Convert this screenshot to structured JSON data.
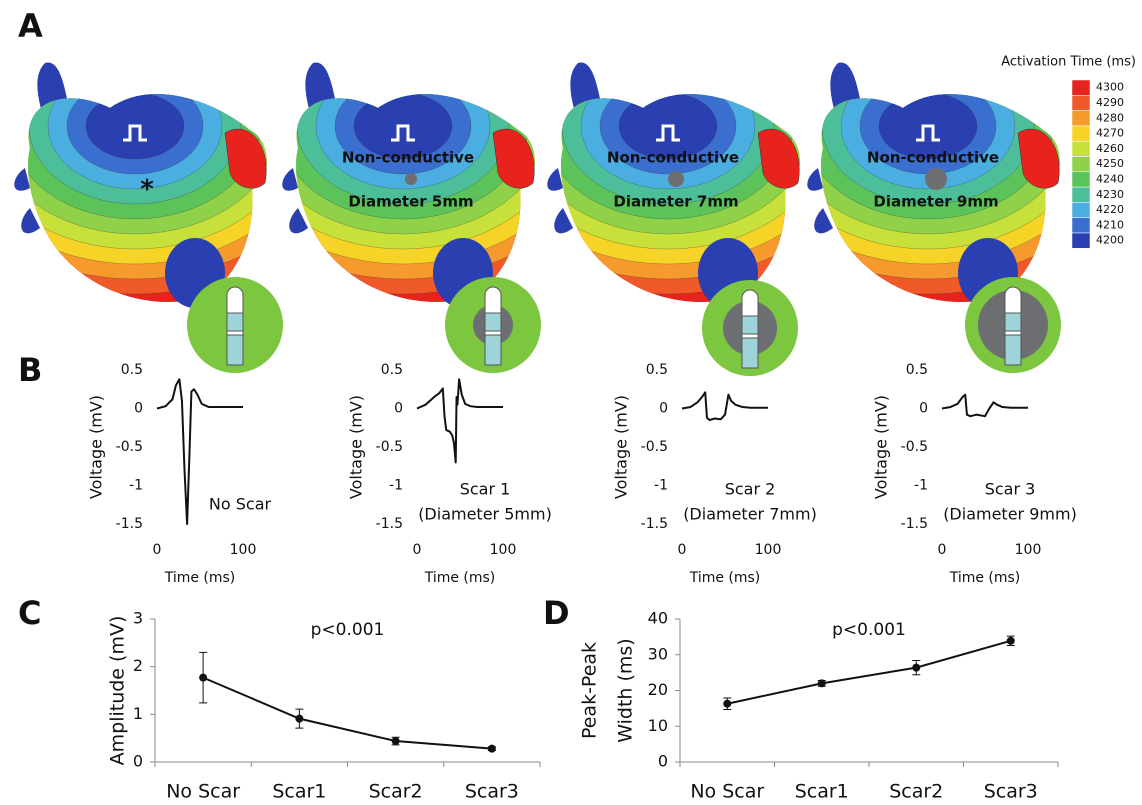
{
  "panel_labels": [
    "A",
    "B",
    "C",
    "D"
  ],
  "activation_map": {
    "colorbar_title": "Activation Time (ms)",
    "colorbar_ticks": [
      4300,
      4290,
      4280,
      4270,
      4260,
      4250,
      4240,
      4230,
      4220,
      4210,
      4200
    ],
    "colors": [
      "#e8231e",
      "#f05a28",
      "#f79a2e",
      "#f5d327",
      "#c8e03a",
      "#8fd24a",
      "#5cc35a",
      "#4cbf9a",
      "#4aaee0",
      "#3a6fd0",
      "#2a3fb0"
    ],
    "maps": [
      {
        "labels": [
          "*"
        ]
      },
      {
        "labels": [
          "Non-conductive",
          "Diameter 5mm"
        ]
      },
      {
        "labels": [
          "Non-conductive",
          "Diameter 7mm"
        ]
      },
      {
        "labels": [
          "Non-conductive",
          "Diameter 9mm"
        ]
      }
    ]
  },
  "chart_data": [
    {
      "type": "line",
      "xlabel": "Time (ms)",
      "ylabel": "Voltage (mV)",
      "annotation": [
        "No Scar"
      ],
      "xlim": [
        0,
        100
      ],
      "xticks": [
        0,
        100
      ],
      "ylim": [
        -1.5,
        0.5
      ],
      "yticks": [
        0.5,
        0,
        -0.5,
        -1,
        -1.5
      ],
      "color": "#111111",
      "x": [
        0,
        10,
        18,
        22,
        26,
        29,
        32,
        35,
        38,
        40,
        43,
        47,
        52,
        60,
        70,
        100
      ],
      "values": [
        0,
        0.03,
        0.12,
        0.3,
        0.38,
        0.1,
        -0.8,
        -1.5,
        -0.5,
        0.22,
        0.25,
        0.18,
        0.06,
        0.02,
        0.02,
        0.02
      ]
    },
    {
      "type": "line",
      "xlabel": "Time (ms)",
      "ylabel": "Voltage (mV)",
      "annotation": [
        "Scar 1",
        "(Diameter 5mm)"
      ],
      "xlim": [
        0,
        100
      ],
      "xticks": [
        0,
        100
      ],
      "ylim": [
        -1.5,
        0.5
      ],
      "yticks": [
        0.5,
        0,
        -0.5,
        -1,
        -1.5
      ],
      "color": "#111111",
      "x": [
        0,
        10,
        20,
        26,
        30,
        32,
        34,
        38,
        41,
        43,
        45,
        46,
        47,
        49,
        52,
        56,
        62,
        70,
        100
      ],
      "values": [
        0,
        0.05,
        0.15,
        0.2,
        0.26,
        -0.1,
        -0.28,
        -0.3,
        -0.35,
        -0.45,
        -0.7,
        0.15,
        0.05,
        0.38,
        0.18,
        0.06,
        0.03,
        0.02,
        0.02
      ]
    },
    {
      "type": "line",
      "xlabel": "Time (ms)",
      "ylabel": "Voltage (mV)",
      "annotation": [
        "Scar 2",
        "(Diameter 7mm)"
      ],
      "xlim": [
        0,
        100
      ],
      "xticks": [
        0,
        100
      ],
      "ylim": [
        -1.5,
        0.5
      ],
      "yticks": [
        0.5,
        0,
        -0.5,
        -1,
        -1.5
      ],
      "color": "#111111",
      "x": [
        0,
        10,
        18,
        24,
        27,
        29,
        32,
        38,
        45,
        50,
        54,
        57,
        62,
        70,
        80,
        100
      ],
      "values": [
        0,
        0.02,
        0.08,
        0.16,
        0.21,
        -0.12,
        -0.15,
        -0.13,
        -0.14,
        -0.08,
        0.18,
        0.1,
        0.05,
        0.02,
        0.01,
        0.01
      ]
    },
    {
      "type": "line",
      "xlabel": "Time (ms)",
      "ylabel": "Voltage (mV)",
      "annotation": [
        "Scar 3",
        "(Diameter 9mm)"
      ],
      "xlim": [
        0,
        100
      ],
      "xticks": [
        0,
        100
      ],
      "ylim": [
        -1.5,
        0.5
      ],
      "yticks": [
        0.5,
        0,
        -0.5,
        -1,
        -1.5
      ],
      "color": "#111111",
      "x": [
        0,
        10,
        18,
        24,
        27,
        29,
        33,
        40,
        50,
        55,
        60,
        64,
        70,
        80,
        100
      ],
      "values": [
        0,
        0.02,
        0.06,
        0.15,
        0.18,
        -0.08,
        -0.1,
        -0.08,
        -0.1,
        0,
        0.08,
        0.05,
        0.02,
        0.01,
        0.01
      ]
    },
    {
      "type": "errorline",
      "ylabel": "Amplitude (mV)",
      "annotation": [
        "p<0.001"
      ],
      "categories": [
        "No Scar",
        "Scar1",
        "Scar2",
        "Scar3"
      ],
      "values": [
        1.77,
        0.91,
        0.44,
        0.28
      ],
      "errors": [
        0.53,
        0.2,
        0.08,
        0.04
      ],
      "ylim": [
        0,
        3
      ],
      "yticks": [
        0,
        1,
        2,
        3
      ],
      "color": "#111111"
    },
    {
      "type": "errorline",
      "ylabel": [
        "Peak-Peak",
        "Width (ms)"
      ],
      "annotation": [
        "p<0.001"
      ],
      "categories": [
        "No Scar",
        "Scar1",
        "Scar2",
        "Scar3"
      ],
      "values": [
        16.3,
        22,
        26.4,
        33.9
      ],
      "errors": [
        1.6,
        0.8,
        2,
        1.3
      ],
      "ylim": [
        0,
        40
      ],
      "yticks": [
        0,
        10,
        20,
        30,
        40
      ],
      "color": "#111111"
    }
  ]
}
